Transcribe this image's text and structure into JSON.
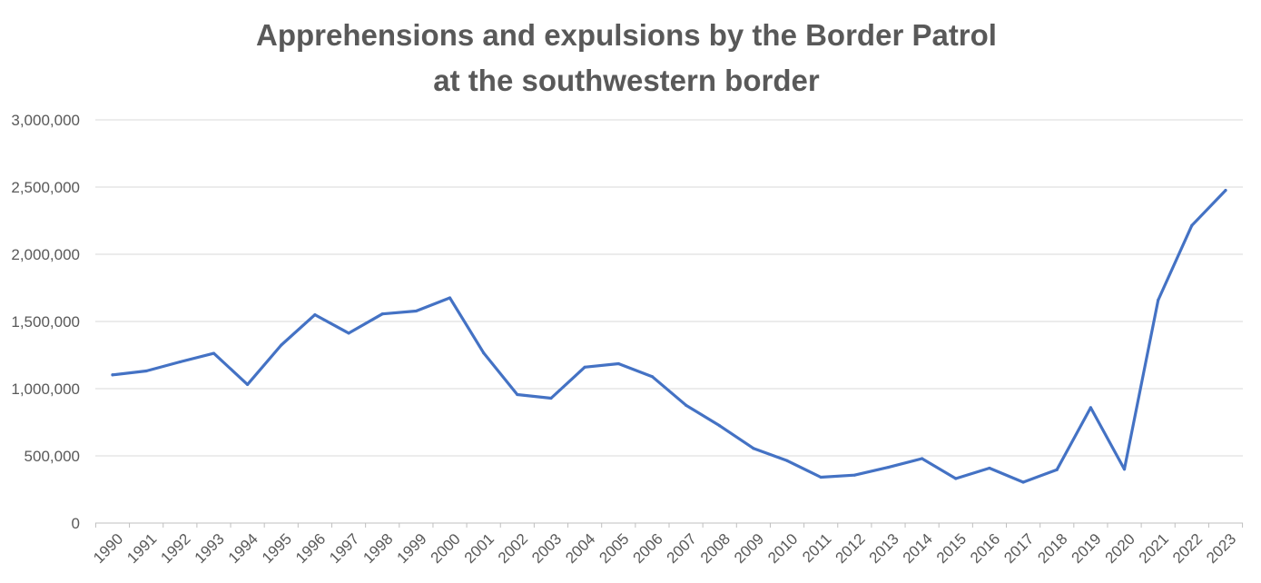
{
  "chart_data": {
    "type": "line",
    "title_line1": "Apprehensions and expulsions by the Border Patrol",
    "title_line2": "at the southwestern border",
    "xlabel": "",
    "ylabel": "",
    "ylim": [
      0,
      3000000
    ],
    "y_ticks": [
      0,
      500000,
      1000000,
      1500000,
      2000000,
      2500000,
      3000000
    ],
    "y_tick_labels": [
      "0",
      "500,000",
      "1,000,000",
      "1,500,000",
      "2,000,000",
      "2,500,000",
      "3,000,000"
    ],
    "grid": true,
    "legend": "none",
    "line_color": "#4472C4",
    "categories": [
      "1990",
      "1991",
      "1992",
      "1993",
      "1994",
      "1995",
      "1996",
      "1997",
      "1998",
      "1999",
      "2000",
      "2001",
      "2002",
      "2003",
      "2004",
      "2005",
      "2006",
      "2007",
      "2008",
      "2009",
      "2010",
      "2011",
      "2012",
      "2013",
      "2014",
      "2015",
      "2016",
      "2017",
      "2018",
      "2019",
      "2020",
      "2021",
      "2022",
      "2023"
    ],
    "series": [
      {
        "values": [
          1103000,
          1132000,
          1199000,
          1263000,
          1031000,
          1324000,
          1550000,
          1413000,
          1556000,
          1578000,
          1676000,
          1266000,
          956000,
          929000,
          1160000,
          1186000,
          1090000,
          877000,
          724000,
          556000,
          464000,
          341000,
          357000,
          415000,
          480000,
          331000,
          409000,
          304000,
          397000,
          859000,
          401000,
          1659000,
          2214000,
          2476000
        ]
      }
    ]
  }
}
